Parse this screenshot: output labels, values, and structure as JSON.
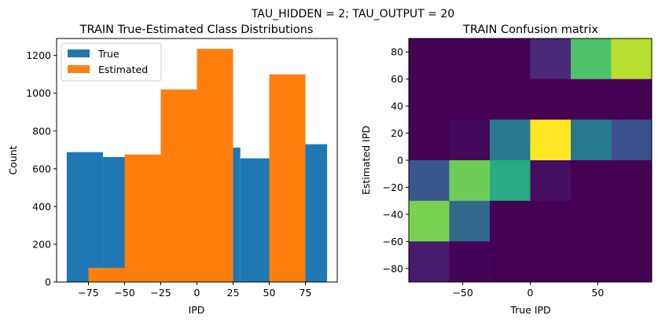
{
  "figure": {
    "suptitle": "TAU_HIDDEN = 2; TAU_OUTPUT = 20"
  },
  "chart_data": [
    {
      "type": "bar",
      "subtype": "overlaid-histogram",
      "title": "TRAIN True-Estimated Class Distributions",
      "xlabel": "IPD",
      "ylabel": "Count",
      "xlim": [
        -97,
        97
      ],
      "ylim": [
        0,
        1290
      ],
      "xticks": [
        -75,
        -50,
        -25,
        0,
        25,
        50,
        75
      ],
      "yticks": [
        0,
        200,
        400,
        600,
        800,
        1000,
        1200
      ],
      "legend": {
        "location": "upper-left",
        "entries": [
          "True",
          "Estimated"
        ]
      },
      "series": [
        {
          "name": "True",
          "color": "#1f77b4",
          "bins": [
            {
              "x0": -90,
              "x1": -65,
              "value": 688
            },
            {
              "x0": -65,
              "x1": -50,
              "value": 662
            },
            {
              "x0": -50,
              "x1": -25,
              "value": 665
            },
            {
              "x0": -25,
              "x1": 0,
              "value": 670
            },
            {
              "x0": 0,
              "x1": 25,
              "value": 690
            },
            {
              "x0": 25,
              "x1": 30,
              "value": 712
            },
            {
              "x0": 30,
              "x1": 50,
              "value": 655
            },
            {
              "x0": 50,
              "x1": 70,
              "value": 660
            },
            {
              "x0": 70,
              "x1": 90,
              "value": 730
            }
          ]
        },
        {
          "name": "Estimated",
          "color": "#ff7f0e",
          "bins": [
            {
              "x0": -75,
              "x1": -50,
              "value": 75
            },
            {
              "x0": -50,
              "x1": -25,
              "value": 675
            },
            {
              "x0": -25,
              "x1": 0,
              "value": 1020
            },
            {
              "x0": 0,
              "x1": 25,
              "value": 1235
            },
            {
              "x0": 25,
              "x1": 50,
              "value": 0
            },
            {
              "x0": 50,
              "x1": 75,
              "value": 1100
            }
          ]
        }
      ]
    },
    {
      "type": "heatmap",
      "title": "TRAIN Confusion matrix",
      "xlabel": "True IPD",
      "ylabel": "Estimated IPD",
      "xlim": [
        -90,
        90
      ],
      "ylim": [
        -90,
        90
      ],
      "xticks": [
        -50,
        0,
        50
      ],
      "yticks": [
        -80,
        -60,
        -40,
        -20,
        0,
        20,
        40,
        60,
        80
      ],
      "colormap": "viridis",
      "x_edges": [
        -90,
        -60,
        -30,
        0,
        30,
        60,
        90
      ],
      "y_edges": [
        -90,
        -60,
        -30,
        0,
        30,
        60,
        90
      ],
      "cells_top_to_bottom": [
        [
          0.0,
          0.0,
          0.0,
          0.12,
          0.72,
          0.9
        ],
        [
          0.0,
          0.0,
          0.0,
          0.0,
          0.0,
          0.0
        ],
        [
          0.0,
          0.02,
          0.42,
          1.0,
          0.42,
          0.25
        ],
        [
          0.28,
          0.78,
          0.62,
          0.04,
          0.0,
          0.0
        ],
        [
          0.8,
          0.35,
          0.0,
          0.0,
          0.0,
          0.0
        ],
        [
          0.08,
          0.01,
          0.0,
          0.0,
          0.0,
          0.0
        ]
      ]
    }
  ]
}
